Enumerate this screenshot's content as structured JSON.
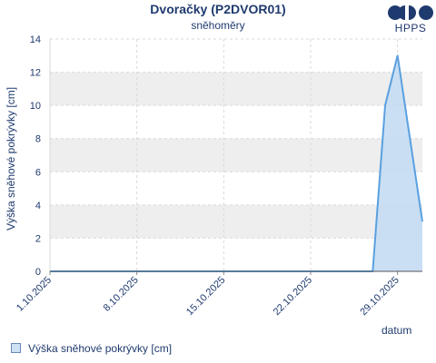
{
  "header": {
    "title": "Dvoračky (P2DVOR01)",
    "subtitle": "sněhoměry"
  },
  "logo": {
    "text": "HPPS"
  },
  "legend": {
    "label": "Výška sněhové pokrývky [cm]"
  },
  "colors": {
    "line": "#5aa0e0",
    "area": "#c4dcf2",
    "band": "#eeeeee",
    "text": "#1f3a6e"
  },
  "chart_data": {
    "type": "area",
    "title": "Dvoračky (P2DVOR01)",
    "subtitle": "sněhoměry",
    "xlabel": "datum",
    "ylabel": "Výška sněhové pokrývky [cm]",
    "ylim": [
      0,
      14
    ],
    "yticks": [
      "0",
      "2",
      "4",
      "6",
      "8",
      "10",
      "12",
      "14"
    ],
    "xlim": [
      "2025-10-01",
      "2025-10-31"
    ],
    "xticks": [
      {
        "date": "2025-10-01",
        "label": "1.10.2025"
      },
      {
        "date": "2025-10-08",
        "label": "8.10.2025"
      },
      {
        "date": "2025-10-15",
        "label": "15.10.2025"
      },
      {
        "date": "2025-10-22",
        "label": "22.10.2025"
      },
      {
        "date": "2025-10-29",
        "label": "29.10.2025"
      }
    ],
    "grid": true,
    "legend_position": "bottom-left",
    "series": [
      {
        "name": "Výška sněhové pokrývky [cm]",
        "points": [
          {
            "x": "2025-10-01",
            "y": 0
          },
          {
            "x": "2025-10-27",
            "y": 0
          },
          {
            "x": "2025-10-28",
            "y": 10
          },
          {
            "x": "2025-10-29",
            "y": 13
          },
          {
            "x": "2025-10-31",
            "y": 3
          }
        ]
      }
    ]
  }
}
